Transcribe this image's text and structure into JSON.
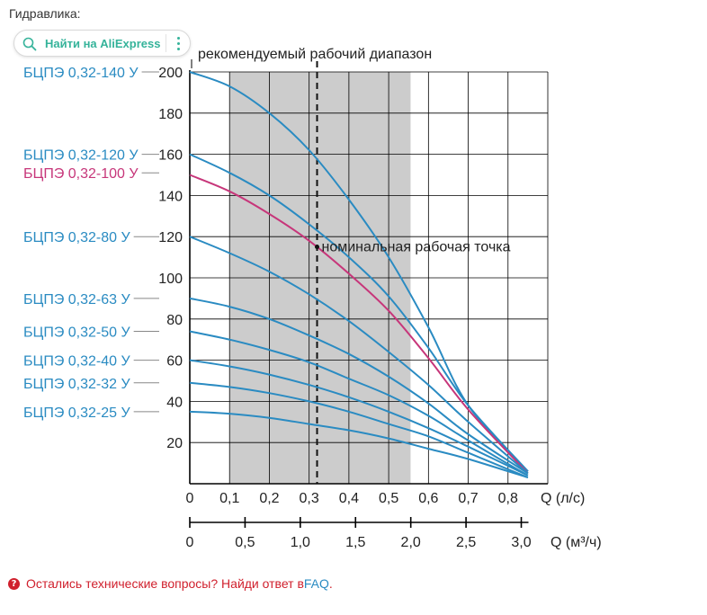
{
  "page": {
    "section_title": "Гидравлика:",
    "aliexpress_button": "Найти на AliExpress",
    "footer": {
      "text": "Остались технические вопросы? Найди ответ в ",
      "link": "FAQ",
      "end": "."
    }
  },
  "colors": {
    "blue": "#2a8bc2",
    "magenta": "#c7367a",
    "band": "#cccccc",
    "grid": "#000000"
  },
  "chart_data": {
    "type": "line",
    "title": "",
    "recommended_range_label": "рекомендуемый рабочий диапазон",
    "nominal_point_label": "номинальная рабочая точка",
    "xlabel": "Q (л/с)",
    "xlabel2": "Q (м³/ч)",
    "xlim": [
      0,
      0.9
    ],
    "ylim": [
      0,
      200
    ],
    "x_ticks": [
      0,
      0.1,
      0.2,
      0.3,
      0.4,
      0.5,
      0.6,
      0.7,
      0.8
    ],
    "x_tick_labels": [
      "0",
      "0,1",
      "0,2",
      "0,3",
      "0,4",
      "0,5",
      "0,6",
      "0,7",
      "0,8"
    ],
    "x2_ticks": [
      0,
      0.5,
      1.0,
      1.5,
      2.0,
      2.5,
      3.0
    ],
    "x2_tick_labels": [
      "0",
      "0,5",
      "1,0",
      "1,5",
      "2,0",
      "2,5",
      "3,0"
    ],
    "y_ticks": [
      20,
      40,
      60,
      80,
      100,
      120,
      140,
      160,
      180,
      200
    ],
    "y_tick_labels": [
      "20",
      "40",
      "60",
      "80",
      "100",
      "120",
      "140",
      "160",
      "180",
      "200"
    ],
    "grid": true,
    "recommended_range": [
      0.1,
      0.555
    ],
    "nominal_q": 0.32,
    "nominal_point": {
      "x": 0.32,
      "y": 115
    },
    "series": [
      {
        "name": "БЦПЭ 0,32-140 У",
        "color": "blue",
        "label_y": 200,
        "x": [
          0,
          0.1,
          0.2,
          0.3,
          0.4,
          0.5,
          0.6,
          0.7,
          0.85
        ],
        "y": [
          200,
          193,
          180,
          162,
          138,
          110,
          76,
          38,
          6
        ]
      },
      {
        "name": "БЦПЭ 0,32-120 У",
        "color": "blue",
        "label_y": 160,
        "x": [
          0,
          0.1,
          0.2,
          0.3,
          0.4,
          0.5,
          0.6,
          0.7,
          0.85
        ],
        "y": [
          160,
          151,
          140,
          126,
          110,
          91,
          66,
          38,
          6
        ]
      },
      {
        "name": "БЦПЭ 0,32-100 У",
        "color": "magenta",
        "label_y": 151,
        "x": [
          0,
          0.1,
          0.2,
          0.3,
          0.4,
          0.5,
          0.6,
          0.7,
          0.85
        ],
        "y": [
          150,
          142,
          131,
          118,
          102,
          84,
          61,
          36,
          5
        ]
      },
      {
        "name": "БЦПЭ 0,32-80 У",
        "color": "blue",
        "label_y": 120,
        "x": [
          0,
          0.1,
          0.2,
          0.3,
          0.4,
          0.5,
          0.6,
          0.7,
          0.85
        ],
        "y": [
          120,
          112,
          103,
          92,
          79,
          64,
          48,
          30,
          5
        ]
      },
      {
        "name": "БЦПЭ 0,32-63 У",
        "color": "blue",
        "label_y": 90,
        "x": [
          0,
          0.1,
          0.2,
          0.3,
          0.4,
          0.5,
          0.6,
          0.7,
          0.85
        ],
        "y": [
          90,
          86,
          80,
          72,
          63,
          52,
          39,
          24,
          5
        ]
      },
      {
        "name": "БЦПЭ 0,32-50 У",
        "color": "blue",
        "label_y": 74,
        "x": [
          0,
          0.1,
          0.2,
          0.3,
          0.4,
          0.5,
          0.6,
          0.7,
          0.85
        ],
        "y": [
          74,
          70,
          65,
          59,
          51,
          43,
          33,
          21,
          4
        ]
      },
      {
        "name": "БЦПЭ 0,32-40 У",
        "color": "blue",
        "label_y": 60,
        "x": [
          0,
          0.1,
          0.2,
          0.3,
          0.4,
          0.5,
          0.6,
          0.7,
          0.85
        ],
        "y": [
          60,
          57,
          53,
          48,
          42,
          35,
          27,
          18,
          4
        ]
      },
      {
        "name": "БЦПЭ 0,32-32 У",
        "color": "blue",
        "label_y": 49,
        "x": [
          0,
          0.1,
          0.2,
          0.3,
          0.4,
          0.5,
          0.6,
          0.7,
          0.85
        ],
        "y": [
          49,
          47,
          44,
          40,
          35,
          29,
          23,
          15,
          3
        ]
      },
      {
        "name": "БЦПЭ 0,32-25 У",
        "color": "blue",
        "label_y": 35,
        "x": [
          0,
          0.1,
          0.2,
          0.3,
          0.4,
          0.5,
          0.6,
          0.7,
          0.85
        ],
        "y": [
          35,
          34,
          32,
          29,
          26,
          22,
          17,
          12,
          3
        ]
      }
    ]
  }
}
